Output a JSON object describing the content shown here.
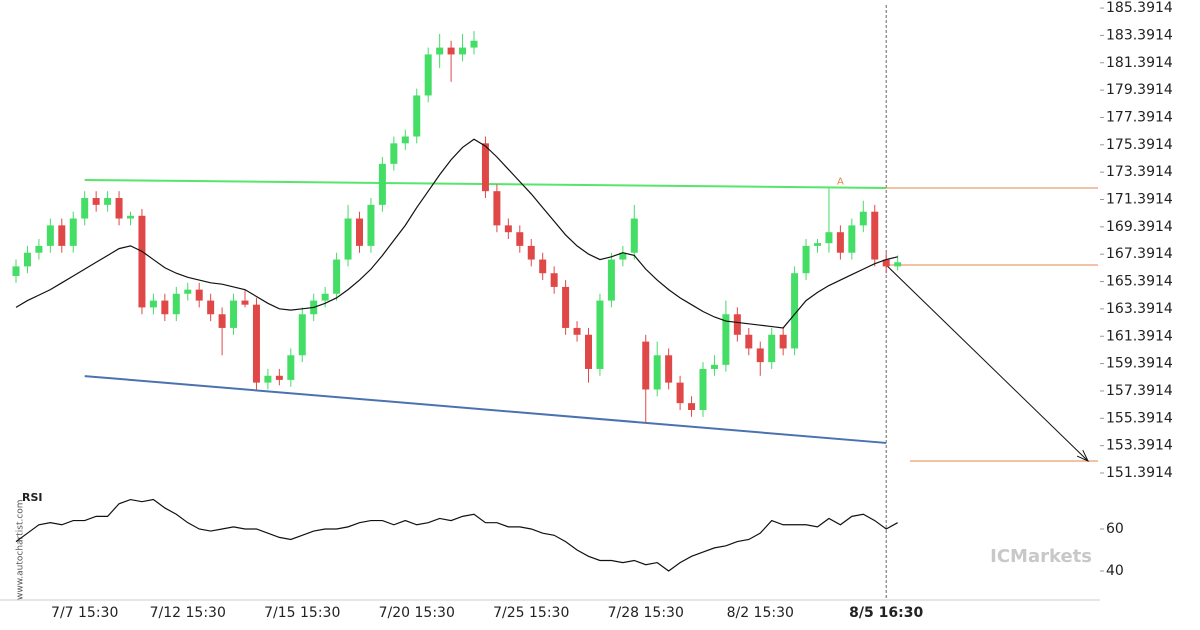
{
  "chart_data": {
    "type": "candlestick",
    "categories": [
      null,
      null,
      null,
      null,
      null,
      null,
      "7/7 15:30",
      null,
      null,
      null,
      null,
      null,
      null,
      null,
      null,
      "7/12 15:30",
      null,
      null,
      null,
      null,
      null,
      null,
      null,
      null,
      null,
      "7/15 15:30",
      null,
      null,
      null,
      null,
      null,
      null,
      null,
      null,
      null,
      "7/20 15:30",
      null,
      null,
      null,
      null,
      null,
      null,
      null,
      null,
      null,
      "7/25 15:30",
      null,
      null,
      null,
      null,
      null,
      null,
      null,
      null,
      null,
      "7/28 15:30",
      null,
      null,
      null,
      null,
      null,
      null,
      null,
      null,
      null,
      "8/2 15:30",
      null,
      null,
      null,
      null,
      null,
      null,
      null,
      null,
      null,
      null,
      "8/5 16:30",
      null
    ],
    "ohlc": [
      [
        165.8,
        167,
        165.3,
        166.5
      ],
      [
        166.5,
        168,
        166,
        167.5
      ],
      [
        167.5,
        168.5,
        167,
        168
      ],
      [
        168,
        170,
        167.5,
        169.5
      ],
      [
        169.5,
        170,
        167.5,
        168
      ],
      [
        168,
        170.5,
        167.5,
        170
      ],
      [
        170,
        172,
        169.5,
        171.5
      ],
      [
        171.5,
        172,
        170.5,
        171
      ],
      [
        171,
        172,
        170.5,
        171.5
      ],
      [
        171.5,
        172,
        169.5,
        170
      ],
      [
        170,
        170.5,
        169.5,
        170.2
      ],
      [
        170.2,
        170.7,
        163,
        163.5
      ],
      [
        163.5,
        164.5,
        163,
        164
      ],
      [
        164,
        164.5,
        162.5,
        163
      ],
      [
        163,
        165,
        162.5,
        164.5
      ],
      [
        164.5,
        165.3,
        164,
        164.8
      ],
      [
        164.8,
        165.3,
        163.5,
        164
      ],
      [
        164,
        164.5,
        162.5,
        163
      ],
      [
        163,
        163.5,
        160,
        162
      ],
      [
        162,
        164.5,
        161.5,
        164
      ],
      [
        164,
        164.8,
        163.5,
        163.7
      ],
      [
        163.7,
        164.2,
        157.5,
        158
      ],
      [
        158,
        159,
        157.5,
        158.5
      ],
      [
        158.5,
        159,
        157.8,
        158.2
      ],
      [
        158.2,
        160.5,
        157.7,
        160
      ],
      [
        160,
        163.5,
        159.5,
        163
      ],
      [
        163,
        164.5,
        162.5,
        164
      ],
      [
        164,
        165,
        163.5,
        164.5
      ],
      [
        164.5,
        167.5,
        164,
        167
      ],
      [
        167,
        171,
        166.5,
        170
      ],
      [
        170,
        170.5,
        167.5,
        168
      ],
      [
        168,
        171.5,
        167.5,
        171
      ],
      [
        171,
        174.5,
        170.5,
        174
      ],
      [
        174,
        176,
        173.5,
        175.5
      ],
      [
        175.5,
        176.5,
        175,
        176
      ],
      [
        176,
        179.5,
        175.5,
        179
      ],
      [
        179,
        182.5,
        178.5,
        182
      ],
      [
        182,
        183.5,
        181,
        182.5
      ],
      [
        182.5,
        183,
        180,
        182
      ],
      [
        182,
        183.5,
        181.5,
        182.5
      ],
      [
        182.5,
        183.7,
        182,
        183
      ],
      [
        175.5,
        176,
        171.5,
        172
      ],
      [
        172,
        172.5,
        169,
        169.5
      ],
      [
        169.5,
        170,
        168.5,
        169
      ],
      [
        169,
        169.5,
        167.5,
        168
      ],
      [
        168,
        168.5,
        166.5,
        167
      ],
      [
        167,
        167.5,
        165.5,
        166
      ],
      [
        166,
        166.5,
        164.5,
        165
      ],
      [
        165,
        165.5,
        161.5,
        162
      ],
      [
        162,
        162.5,
        161,
        161.5
      ],
      [
        161.5,
        162,
        158,
        159
      ],
      [
        159,
        164.5,
        158.5,
        164
      ],
      [
        164,
        167.5,
        163.5,
        167
      ],
      [
        167,
        168,
        166.5,
        167.5
      ],
      [
        167.5,
        171,
        167,
        170
      ],
      [
        161,
        161.5,
        155,
        157.5
      ],
      [
        157.5,
        161,
        157,
        160
      ],
      [
        160,
        160.5,
        157.5,
        158
      ],
      [
        158,
        158.5,
        156,
        156.5
      ],
      [
        156.5,
        157,
        155.5,
        156
      ],
      [
        156,
        159.5,
        155.5,
        159
      ],
      [
        159,
        160,
        158.5,
        159.3
      ],
      [
        159.3,
        164,
        158.8,
        163
      ],
      [
        163,
        163.5,
        161,
        161.5
      ],
      [
        161.5,
        162,
        160,
        160.5
      ],
      [
        160.5,
        161,
        158.5,
        159.5
      ],
      [
        159.5,
        162,
        159,
        161.5
      ],
      [
        161.5,
        162,
        160,
        160.5
      ],
      [
        160.5,
        166.5,
        160,
        166
      ],
      [
        166,
        168.5,
        165.5,
        168
      ],
      [
        168,
        168.5,
        167.5,
        168.2
      ],
      [
        168.2,
        172.2,
        167.5,
        169
      ],
      [
        169,
        169.5,
        167,
        167.5
      ],
      [
        167.5,
        170,
        167,
        169.5
      ],
      [
        169.5,
        171.3,
        169,
        170.5
      ],
      [
        170.5,
        171,
        166.5,
        167
      ],
      [
        167,
        167.5,
        166,
        166.5
      ],
      [
        166.5,
        167.3,
        166.2,
        166.8
      ]
    ],
    "up_color": "#44dd66",
    "down_color": "#e04848",
    "ma": {
      "color": "#111111",
      "values": [
        163.5,
        164,
        164.4,
        164.8,
        165.3,
        165.8,
        166.3,
        166.8,
        167.3,
        167.8,
        168,
        167.6,
        167,
        166.4,
        166,
        165.7,
        165.5,
        165.3,
        165.2,
        165,
        164.8,
        164.3,
        163.8,
        163.4,
        163.3,
        163.4,
        163.5,
        163.8,
        164.2,
        164.8,
        165.5,
        166.3,
        167.3,
        168.4,
        169.5,
        170.8,
        172,
        173.2,
        174.3,
        175.2,
        175.8,
        175.3,
        174.5,
        173.6,
        172.7,
        171.8,
        170.8,
        169.8,
        168.8,
        168,
        167.4,
        167,
        167.2,
        167.5,
        167.3,
        166.3,
        165.5,
        164.8,
        164.2,
        163.7,
        163.2,
        162.8,
        162.5,
        162.4,
        162.3,
        162.2,
        162.1,
        162,
        163,
        164,
        164.6,
        165.1,
        165.5,
        165.9,
        166.3,
        166.7,
        167,
        167.2
      ]
    },
    "ylim": [
      150.88,
      185.98
    ],
    "yticks": [
      185.3914,
      183.3914,
      181.3914,
      179.3914,
      177.3914,
      175.3914,
      173.3914,
      171.3914,
      169.3914,
      167.3914,
      165.3914,
      163.3914,
      161.3914,
      159.3914,
      157.3914,
      155.3914,
      153.3914,
      151.3914
    ],
    "resistance": {
      "color": "#55e66a",
      "values": [
        172.82,
        172.23
      ]
    },
    "support": {
      "color": "#4a72b0",
      "values": [
        158.48,
        153.59
      ]
    },
    "levels": {
      "color": "#e0874a",
      "values": [
        172.23,
        166.6,
        152.27
      ]
    },
    "annotation": "A",
    "indicator": {
      "name": "RSI",
      "color": "#111111",
      "ylim": [
        26.2,
        79.5
      ],
      "yticks": [
        60,
        40
      ],
      "values": [
        54,
        58,
        62,
        63,
        62,
        64,
        64,
        66,
        66,
        72,
        74,
        73,
        74,
        70,
        67,
        63,
        60,
        59,
        60,
        61,
        60,
        60,
        58,
        56,
        55,
        57,
        59,
        60,
        60,
        61,
        63,
        64,
        64,
        62,
        64,
        62,
        63,
        65,
        64,
        66,
        67,
        63,
        63,
        61,
        61,
        60,
        58,
        57,
        54,
        50,
        47,
        45,
        45,
        44,
        45,
        43,
        44,
        40,
        44,
        47,
        49,
        51,
        52,
        54,
        55,
        58,
        64,
        62,
        62,
        62,
        61,
        65,
        62,
        66,
        67,
        64,
        60,
        63
      ]
    },
    "watermarks": [
      "www.autochartist.com",
      "ICMarkets"
    ]
  }
}
